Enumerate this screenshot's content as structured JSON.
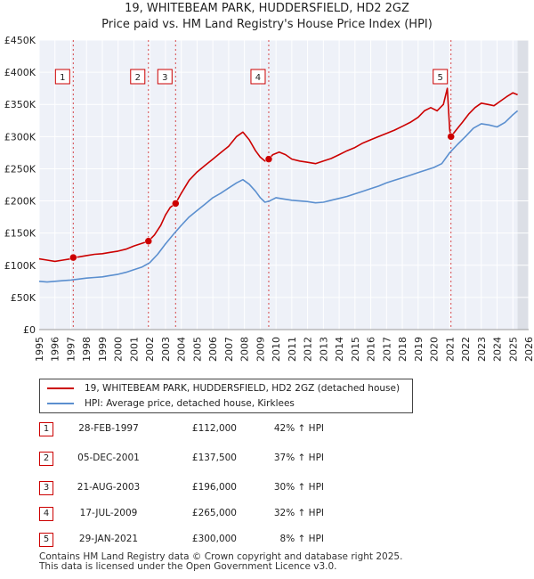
{
  "title_line1": "19, WHITEBEAM PARK, HUDDERSFIELD, HD2 2GZ",
  "title_line2": "Price paid vs. HM Land Registry's House Price Index (HPI)",
  "chart_data": {
    "type": "line",
    "title": "19, WHITEBEAM PARK, HUDDERSFIELD, HD2 2GZ — Price paid vs. HM Land Registry's House Price Index (HPI)",
    "xlim": [
      1995,
      2026
    ],
    "ylim": [
      0,
      450000
    ],
    "x_ticks": [
      1995,
      1996,
      1997,
      1998,
      1999,
      2000,
      2001,
      2002,
      2003,
      2004,
      2005,
      2006,
      2007,
      2008,
      2009,
      2010,
      2011,
      2012,
      2013,
      2014,
      2015,
      2016,
      2017,
      2018,
      2019,
      2020,
      2021,
      2022,
      2023,
      2024,
      2025,
      2026
    ],
    "y_ticks": [
      {
        "value": 0,
        "label": "£0"
      },
      {
        "value": 50000,
        "label": "£50K"
      },
      {
        "value": 100000,
        "label": "£100K"
      },
      {
        "value": 150000,
        "label": "£150K"
      },
      {
        "value": 200000,
        "label": "£200K"
      },
      {
        "value": 250000,
        "label": "£250K"
      },
      {
        "value": 300000,
        "label": "£300K"
      },
      {
        "value": 350000,
        "label": "£350K"
      },
      {
        "value": 400000,
        "label": "£400K"
      },
      {
        "value": 450000,
        "label": "£450K"
      }
    ],
    "series": [
      {
        "name": "19, WHITEBEAM PARK, HUDDERSFIELD, HD2 2GZ (detached house)",
        "color": "#cc0000",
        "x": [
          1995.0,
          1995.5,
          1996.0,
          1996.5,
          1997.0,
          1997.16,
          1997.5,
          1998.0,
          1998.5,
          1999.0,
          1999.5,
          2000.0,
          2000.5,
          2001.0,
          2001.5,
          2001.92,
          2002.3,
          2002.7,
          2003.0,
          2003.3,
          2003.64,
          2004.0,
          2004.5,
          2005.0,
          2005.5,
          2006.0,
          2006.5,
          2007.0,
          2007.5,
          2007.9,
          2008.3,
          2008.7,
          2009.0,
          2009.3,
          2009.54,
          2009.8,
          2010.2,
          2010.6,
          2011.0,
          2011.5,
          2012.0,
          2012.5,
          2013.0,
          2013.5,
          2014.0,
          2014.5,
          2015.0,
          2015.5,
          2016.0,
          2016.5,
          2017.0,
          2017.5,
          2018.0,
          2018.5,
          2019.0,
          2019.4,
          2019.8,
          2020.2,
          2020.6,
          2020.85,
          2021.0,
          2021.08,
          2021.4,
          2021.8,
          2022.2,
          2022.6,
          2023.0,
          2023.4,
          2023.8,
          2024.2,
          2024.6,
          2025.0,
          2025.3
        ],
        "values": [
          110000,
          108000,
          106000,
          108000,
          110000,
          112000,
          113000,
          115000,
          117000,
          118000,
          120000,
          122000,
          125000,
          130000,
          134000,
          137500,
          147000,
          162000,
          178000,
          190000,
          196000,
          212000,
          232000,
          245000,
          255000,
          265000,
          275000,
          285000,
          300000,
          307000,
          295000,
          278000,
          268000,
          262000,
          265000,
          272000,
          276000,
          272000,
          265000,
          262000,
          260000,
          258000,
          262000,
          266000,
          272000,
          278000,
          283000,
          290000,
          295000,
          300000,
          305000,
          310000,
          316000,
          322000,
          330000,
          340000,
          345000,
          340000,
          350000,
          375000,
          310000,
          300000,
          310000,
          322000,
          335000,
          345000,
          352000,
          350000,
          348000,
          355000,
          362000,
          368000,
          365000
        ]
      },
      {
        "name": "HPI: Average price, detached house, Kirklees",
        "color": "#5b8fcf",
        "x": [
          1995.0,
          1995.5,
          1996.0,
          1996.5,
          1997.0,
          1997.5,
          1998.0,
          1998.5,
          1999.0,
          1999.5,
          2000.0,
          2000.5,
          2001.0,
          2001.5,
          2002.0,
          2002.5,
          2003.0,
          2003.5,
          2004.0,
          2004.5,
          2005.0,
          2005.5,
          2006.0,
          2006.5,
          2007.0,
          2007.5,
          2007.9,
          2008.3,
          2008.7,
          2009.0,
          2009.3,
          2009.6,
          2010.0,
          2010.5,
          2011.0,
          2011.5,
          2012.0,
          2012.5,
          2013.0,
          2013.5,
          2014.0,
          2014.5,
          2015.0,
          2015.5,
          2016.0,
          2016.5,
          2017.0,
          2017.5,
          2018.0,
          2018.5,
          2019.0,
          2019.5,
          2020.0,
          2020.5,
          2021.0,
          2021.5,
          2022.0,
          2022.5,
          2023.0,
          2023.5,
          2024.0,
          2024.5,
          2025.0,
          2025.3
        ],
        "values": [
          75000,
          74000,
          75000,
          76000,
          77000,
          78500,
          80000,
          81000,
          82000,
          84000,
          86000,
          89000,
          93000,
          97000,
          104000,
          117000,
          133000,
          148000,
          162000,
          175000,
          185000,
          195000,
          205000,
          212000,
          220000,
          228000,
          233000,
          226000,
          215000,
          205000,
          198000,
          200000,
          205000,
          203000,
          201000,
          200000,
          199000,
          197000,
          198000,
          201000,
          204000,
          207000,
          211000,
          215000,
          219000,
          223000,
          228000,
          232000,
          236000,
          240000,
          244000,
          248000,
          252000,
          258000,
          275000,
          288000,
          300000,
          313000,
          320000,
          318000,
          315000,
          322000,
          334000,
          340000
        ]
      }
    ],
    "sales": [
      {
        "id": "1",
        "x": 1997.16,
        "value": 112000
      },
      {
        "id": "2",
        "x": 2001.92,
        "value": 137500
      },
      {
        "id": "3",
        "x": 2003.64,
        "value": 196000
      },
      {
        "id": "4",
        "x": 2009.54,
        "value": 265000
      },
      {
        "id": "5",
        "x": 2021.08,
        "value": 300000
      }
    ]
  },
  "legend": {
    "red_label": "19, WHITEBEAM PARK, HUDDERSFIELD, HD2 2GZ (detached house)",
    "blue_label": "HPI: Average price, detached house, Kirklees"
  },
  "transactions": [
    {
      "num": "1",
      "date": "28-FEB-1997",
      "price": "£112,000",
      "hpi": "42% ↑ HPI"
    },
    {
      "num": "2",
      "date": "05-DEC-2001",
      "price": "£137,500",
      "hpi": "37% ↑ HPI"
    },
    {
      "num": "3",
      "date": "21-AUG-2003",
      "price": "£196,000",
      "hpi": "30% ↑ HPI"
    },
    {
      "num": "4",
      "date": "17-JUL-2009",
      "price": "£265,000",
      "hpi": "32% ↑ HPI"
    },
    {
      "num": "5",
      "date": "29-JAN-2021",
      "price": "£300,000",
      "hpi": "8% ↑ HPI"
    }
  ],
  "footer": {
    "line1": "Contains HM Land Registry data © Crown copyright and database right 2025.",
    "line2": "This data is licensed under the Open Government Licence v3.0."
  }
}
